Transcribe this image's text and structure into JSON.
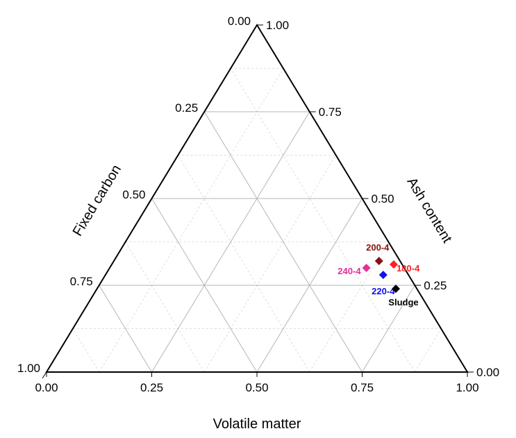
{
  "chart_data": {
    "type": "scatter",
    "subtype": "ternary",
    "title": "",
    "axes": {
      "bottom": {
        "label": "Volatile matter",
        "range": [
          0,
          1
        ],
        "ticks": [
          "0.00",
          "0.25",
          "0.50",
          "0.75",
          "1.00"
        ]
      },
      "left": {
        "label": "Fixed carbon",
        "range": [
          0,
          1
        ],
        "ticks": [
          "0.00",
          "0.25",
          "0.50",
          "0.75",
          "1.00"
        ]
      },
      "right": {
        "label": "Ash content",
        "range": [
          0,
          1
        ],
        "ticks": [
          "0.00",
          "0.25",
          "0.50",
          "0.75",
          "1.00"
        ]
      }
    },
    "grid": true,
    "minor_grid": true,
    "series": [
      {
        "label": "200-4",
        "volatile_matter": 0.63,
        "fixed_carbon": 0.05,
        "ash_content": 0.32,
        "color": "#8b1010"
      },
      {
        "label": "180-4",
        "volatile_matter": 0.67,
        "fixed_carbon": 0.02,
        "ash_content": 0.31,
        "color": "#ff2020"
      },
      {
        "label": "240-4",
        "volatile_matter": 0.61,
        "fixed_carbon": 0.09,
        "ash_content": 0.3,
        "color": "#e0309a"
      },
      {
        "label": "220-4",
        "volatile_matter": 0.66,
        "fixed_carbon": 0.06,
        "ash_content": 0.28,
        "color": "#1010ee"
      },
      {
        "label": "Sludge",
        "volatile_matter": 0.71,
        "fixed_carbon": 0.05,
        "ash_content": 0.24,
        "color": "#000000"
      }
    ]
  }
}
